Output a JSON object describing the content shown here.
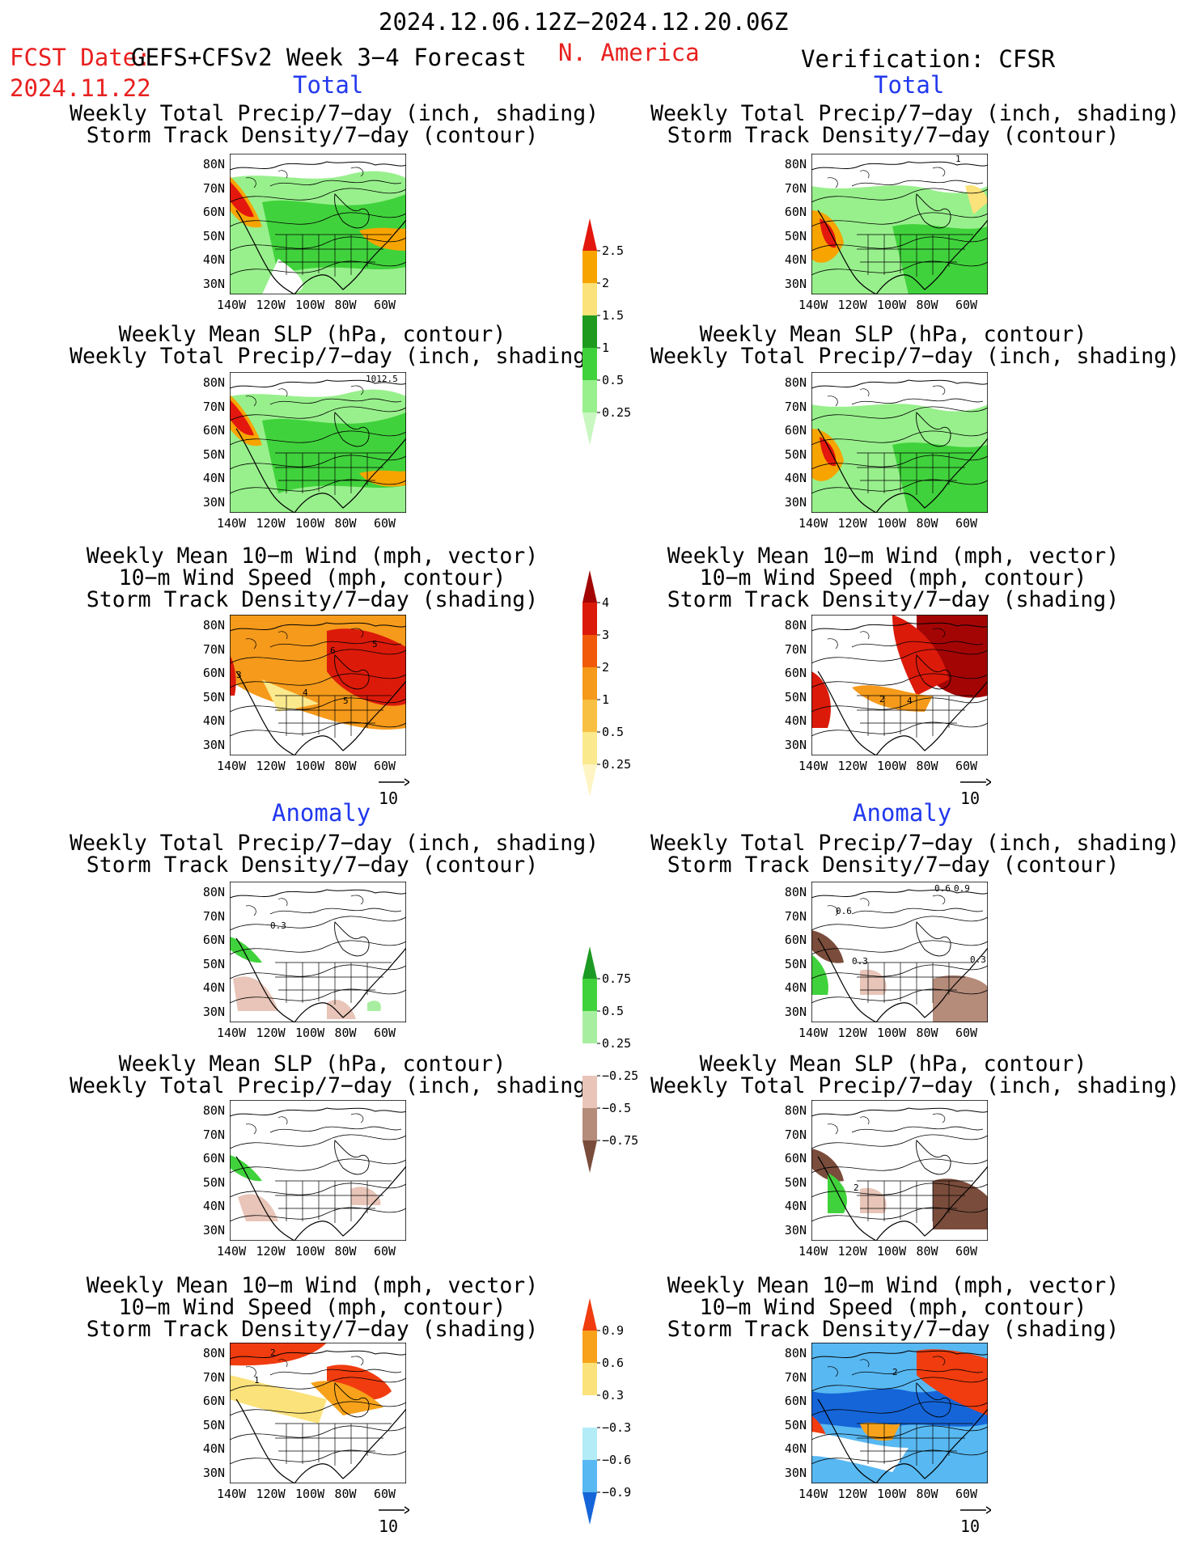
{
  "header": {
    "valid_period": "2024.12.06.12Z−2024.12.20.06Z",
    "fcst_date_label": "FCST Date:",
    "fcst_date": "2024.11.22",
    "model": "GEFS+CFSv2 Week 3−4 Forecast",
    "region": "N. America",
    "verification": "Verification: CFSR"
  },
  "sections": {
    "total": "Total",
    "anomaly": "Anomaly"
  },
  "panel_titles": {
    "precip_storm": [
      "Weekly Total Precip/7−day (inch, shading)",
      "Storm Track Density/7−day (contour)"
    ],
    "slp_precip": [
      "Weekly Mean SLP (hPa, contour)",
      "Weekly Total Precip/7−day (inch, shading)"
    ],
    "wind_storm": [
      "Weekly Mean 10−m Wind (mph, vector)",
      "10−m Wind Speed (mph, contour)",
      "Storm Track Density/7−day (shading)"
    ]
  },
  "map_axes": {
    "lat_labels": [
      "80N",
      "70N",
      "60N",
      "50N",
      "40N",
      "30N"
    ],
    "lon_labels": [
      "140W",
      "120W",
      "100W",
      "80W",
      "60W"
    ]
  },
  "contour_labels": {
    "slp_forecast": "1012.5",
    "storm_verif": "1",
    "wind_fcst_total": [
      "3",
      "4",
      "5",
      "6",
      "5"
    ],
    "wind_verif_total": [
      "2",
      "4"
    ],
    "storm_anom_fcst": "0.3",
    "storm_anom_verif": [
      "0.6",
      "0.9",
      "0.6",
      "0.3",
      "0.3"
    ],
    "slp_anom_verif": "2",
    "wind_anom_fcst": [
      "2",
      "1"
    ],
    "wind_anom_verif": "2"
  },
  "vector_reference": "10",
  "colorbars": {
    "precip_total": {
      "labels": [
        "2.5",
        "2",
        "1.5",
        "1",
        "0.5",
        "0.25"
      ],
      "colors": [
        "#e3170d",
        "#f7a400",
        "#fbe27a",
        "#1f9a1f",
        "#40d23c",
        "#98f08c",
        "#c8f7c0"
      ]
    },
    "storm_total": {
      "labels": [
        "4",
        "3",
        "2",
        "1",
        "0.5",
        "0.25"
      ],
      "colors": [
        "#a30505",
        "#dc1a0a",
        "#f05a0a",
        "#f59a1b",
        "#f8c042",
        "#fbe98d",
        "#fff5c4"
      ]
    },
    "precip_anom": {
      "labels": [
        "0.75",
        "0.5",
        "0.25",
        "−0.25",
        "−0.5",
        "−0.75"
      ],
      "colors": [
        "#1d9a23",
        "#40d23c",
        "#a8eea0",
        "#ffffff",
        "#e8c5b8",
        "#b58b7a",
        "#7a4c3b"
      ]
    },
    "storm_anom": {
      "labels": [
        "0.9",
        "0.6",
        "0.3",
        "−0.3",
        "−0.6",
        "−0.9"
      ],
      "colors": [
        "#f03c0f",
        "#f7a21a",
        "#fbe27a",
        "#ffffff",
        "#b3ecf7",
        "#58b8f2",
        "#1565d8"
      ]
    }
  }
}
